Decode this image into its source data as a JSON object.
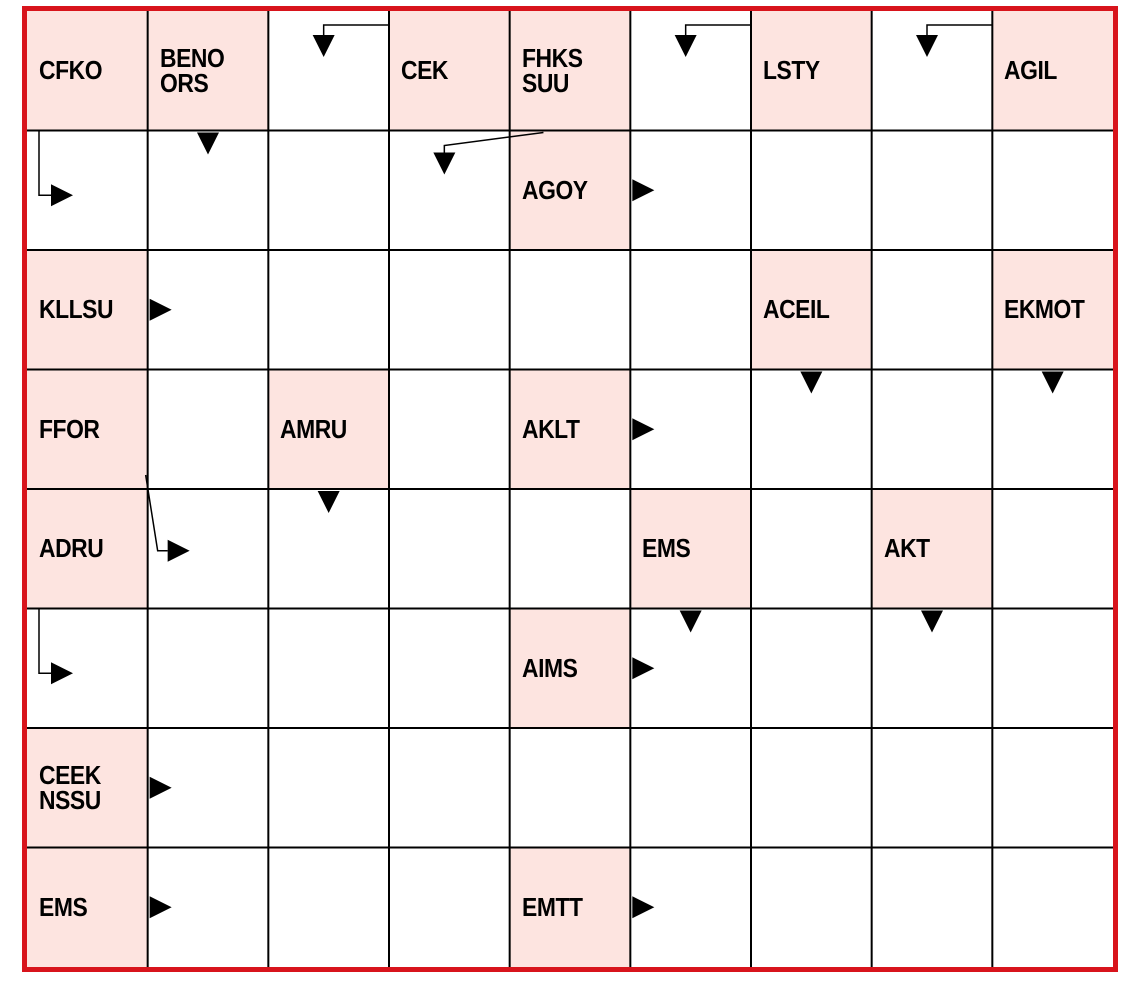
{
  "puzzle": {
    "rows": 8,
    "cols": 9,
    "colors": {
      "border": "#d8141c",
      "clue_fill": "#fde4e0",
      "grid_line": "#000000",
      "text": "#000000",
      "empty_fill": "#ffffff"
    },
    "clues": [
      {
        "row": 0,
        "col": 0,
        "lines": [
          "CFKO"
        ]
      },
      {
        "row": 0,
        "col": 1,
        "lines": [
          "BENO",
          "ORS"
        ]
      },
      {
        "row": 0,
        "col": 3,
        "lines": [
          "CEK"
        ]
      },
      {
        "row": 0,
        "col": 4,
        "lines": [
          "FHKS",
          "SUU"
        ]
      },
      {
        "row": 0,
        "col": 6,
        "lines": [
          "LSTY"
        ]
      },
      {
        "row": 0,
        "col": 8,
        "lines": [
          "AGIL"
        ]
      },
      {
        "row": 1,
        "col": 4,
        "lines": [
          "AGOY"
        ]
      },
      {
        "row": 2,
        "col": 0,
        "lines": [
          "KLLSU"
        ]
      },
      {
        "row": 2,
        "col": 6,
        "lines": [
          "ACEIL"
        ]
      },
      {
        "row": 2,
        "col": 8,
        "lines": [
          "EKMOT"
        ]
      },
      {
        "row": 3,
        "col": 0,
        "lines": [
          "FFOR"
        ]
      },
      {
        "row": 3,
        "col": 2,
        "lines": [
          "AMRU"
        ]
      },
      {
        "row": 3,
        "col": 4,
        "lines": [
          "AKLT"
        ]
      },
      {
        "row": 4,
        "col": 0,
        "lines": [
          "ADRU"
        ]
      },
      {
        "row": 4,
        "col": 5,
        "lines": [
          "EMS"
        ]
      },
      {
        "row": 4,
        "col": 7,
        "lines": [
          "AKT"
        ]
      },
      {
        "row": 5,
        "col": 4,
        "lines": [
          "AIMS"
        ]
      },
      {
        "row": 6,
        "col": 0,
        "lines": [
          "CEEK",
          "NSSU"
        ]
      },
      {
        "row": 7,
        "col": 0,
        "lines": [
          "EMS"
        ]
      },
      {
        "row": 7,
        "col": 4,
        "lines": [
          "EMTT"
        ]
      }
    ],
    "arrows": [
      {
        "type": "right",
        "row": 1,
        "col": 5
      },
      {
        "type": "right",
        "row": 2,
        "col": 1
      },
      {
        "type": "right",
        "row": 3,
        "col": 5
      },
      {
        "type": "right",
        "row": 5,
        "col": 5
      },
      {
        "type": "right",
        "row": 6,
        "col": 1
      },
      {
        "type": "right",
        "row": 7,
        "col": 1
      },
      {
        "type": "right",
        "row": 7,
        "col": 5
      },
      {
        "type": "down",
        "row": 1,
        "col": 1
      },
      {
        "type": "down",
        "row": 3,
        "col": 6
      },
      {
        "type": "down",
        "row": 3,
        "col": 8
      },
      {
        "type": "down",
        "row": 4,
        "col": 2
      },
      {
        "type": "down",
        "row": 5,
        "col": 5
      },
      {
        "type": "down",
        "row": 5,
        "col": 7
      },
      {
        "type": "bent-down",
        "row": 0,
        "col": 2
      },
      {
        "type": "bent-down",
        "row": 0,
        "col": 5
      },
      {
        "type": "bent-down",
        "row": 0,
        "col": 7
      },
      {
        "type": "bent-right",
        "row": 1,
        "col": 0
      },
      {
        "type": "bent-right",
        "row": 5,
        "col": 0
      },
      {
        "type": "diag-down",
        "row": 1,
        "col": 3
      },
      {
        "type": "diag-right",
        "row": 4,
        "col": 1
      }
    ]
  }
}
